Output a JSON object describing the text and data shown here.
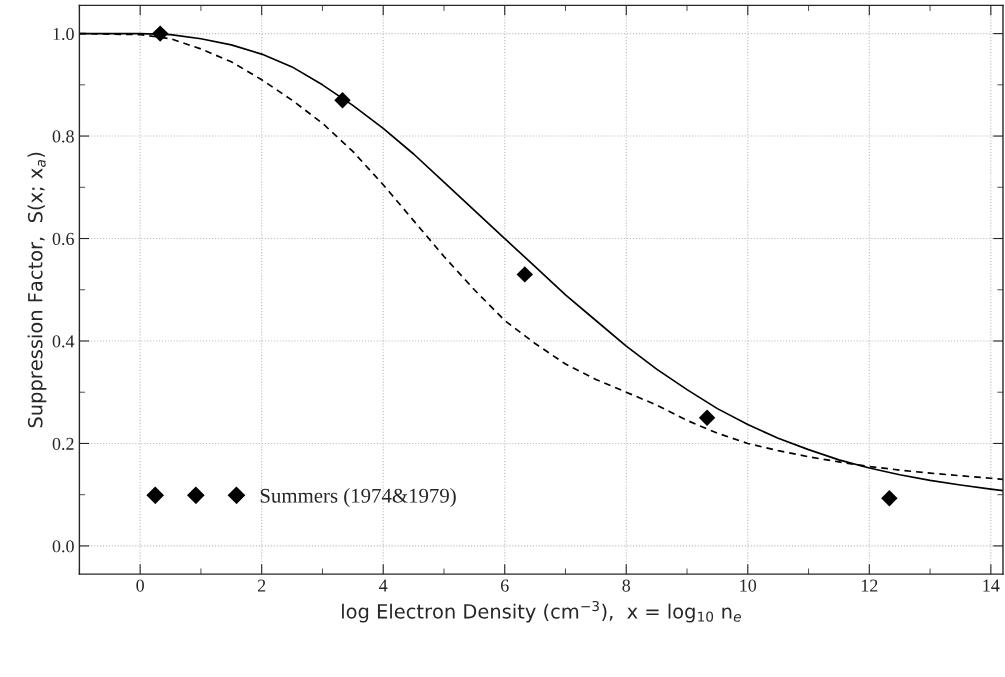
{
  "chart_data": {
    "type": "line",
    "xlabel": "log Electron Density (cm$^{−3}$),  x = log$_{10}$ n$_{e}$",
    "ylabel": "Suppression Factor,  S(x; x$_{a}$)",
    "series": [
      {
        "line_style": "solid",
        "color": "#000000",
        "x": [
          -1,
          0,
          0.5,
          1,
          1.5,
          2,
          2.5,
          3,
          3.5,
          4,
          4.5,
          5,
          5.5,
          6,
          6.5,
          7,
          7.5,
          8,
          8.5,
          9,
          9.5,
          10,
          10.5,
          11,
          11.5,
          12,
          12.5,
          13,
          13.5,
          14,
          14.2
        ],
        "values": [
          1.0,
          1.0,
          0.998,
          0.99,
          0.978,
          0.96,
          0.935,
          0.9,
          0.86,
          0.815,
          0.765,
          0.71,
          0.655,
          0.6,
          0.545,
          0.49,
          0.44,
          0.39,
          0.345,
          0.305,
          0.268,
          0.237,
          0.21,
          0.188,
          0.168,
          0.152,
          0.139,
          0.128,
          0.119,
          0.111,
          0.108
        ]
      },
      {
        "line_style": "dashed",
        "color": "#000000",
        "x": [
          -1,
          0,
          0.5,
          1,
          1.5,
          2,
          2.5,
          3,
          3.5,
          4,
          4.5,
          5,
          5.5,
          6,
          6.5,
          7,
          7.5,
          8,
          8.5,
          9,
          9.5,
          10,
          10.5,
          11,
          11.5,
          12,
          12.5,
          13,
          13.5,
          14,
          14.2
        ],
        "values": [
          1.0,
          0.998,
          0.99,
          0.97,
          0.945,
          0.91,
          0.87,
          0.825,
          0.77,
          0.705,
          0.635,
          0.565,
          0.5,
          0.44,
          0.395,
          0.355,
          0.325,
          0.3,
          0.275,
          0.245,
          0.22,
          0.2,
          0.186,
          0.174,
          0.164,
          0.155,
          0.148,
          0.142,
          0.137,
          0.132,
          0.13
        ]
      },
      {
        "type": "scatter",
        "name": "Summers (1974&1979)",
        "marker": "diamond",
        "color": "#000000",
        "x": [
          0.33,
          3.33,
          6.33,
          9.33,
          12.33
        ],
        "values": [
          1.0,
          0.87,
          0.53,
          0.25,
          0.093
        ]
      }
    ],
    "xlim": [
      -1,
      14.2
    ],
    "ylim": [
      -0.055,
      1.055
    ],
    "xticks": [
      0,
      2,
      4,
      6,
      8,
      10,
      12,
      14
    ],
    "yticks": [
      {
        "value": 0,
        "label": "0.0"
      },
      {
        "value": 0.2,
        "label": "0.2"
      },
      {
        "value": 0.4,
        "label": "0.4"
      },
      {
        "value": 0.6,
        "label": "0.6"
      },
      {
        "value": 0.8,
        "label": "0.8"
      },
      {
        "value": 1.0,
        "label": "1.0"
      }
    ],
    "grid": true,
    "legend": "bottom left"
  }
}
